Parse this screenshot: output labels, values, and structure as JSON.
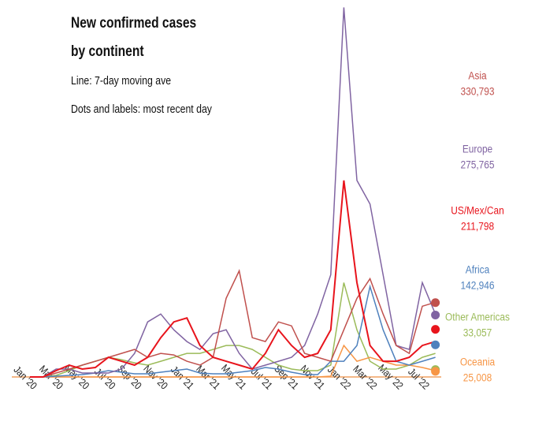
{
  "chart_data": {
    "type": "line",
    "title_lines": [
      "New confirmed cases",
      "by continent"
    ],
    "subtitle_lines": [
      "Line: 7-day moving ave",
      "Dots and labels: most recent day"
    ],
    "categories": [
      "Jan '20",
      null,
      "Mar '20",
      null,
      "May '20",
      null,
      "Jul '20",
      null,
      "Sep '20",
      null,
      "Nov '20",
      null,
      "Jan '21",
      null,
      "Mar '21",
      null,
      "May '21",
      null,
      "Jul '21",
      null,
      "Sep '21",
      null,
      "Nov '21",
      null,
      "Jan '22",
      null,
      "Mar '22",
      null,
      "May '22",
      null,
      "Jul '22",
      null
    ],
    "ylim": [
      0,
      1650000
    ],
    "series": [
      {
        "name": "Asia",
        "color": "#c0504d",
        "latest_value": 330793,
        "latest_label": "330,793",
        "values": [
          0,
          0,
          17500,
          35000,
          52500,
          70000,
          87500,
          105000,
          122500,
          87500,
          105000,
          98000,
          70000,
          52500,
          87500,
          350000,
          472500,
          175000,
          157500,
          245000,
          227500,
          105000,
          87500,
          70000,
          210000,
          350000,
          437500,
          280000,
          140000,
          105000,
          315000,
          332500
        ]
      },
      {
        "name": "Europe",
        "color": "#8064a2",
        "latest_value": 275765,
        "latest_label": "275,765",
        "values": [
          0,
          0,
          35000,
          35000,
          17500,
          17500,
          17500,
          35000,
          105000,
          245000,
          280000,
          210000,
          157500,
          122500,
          192500,
          210000,
          105000,
          35000,
          52500,
          70000,
          87500,
          140000,
          280000,
          455000,
          1645000,
          875000,
          770000,
          455000,
          140000,
          122500,
          420000,
          280000
        ]
      },
      {
        "name": "US/Mex/Can",
        "color": "#e8141c",
        "latest_value": 211798,
        "latest_label": "211,798",
        "values": [
          0,
          0,
          28000,
          52500,
          35000,
          42000,
          87500,
          70000,
          52500,
          87500,
          175000,
          245000,
          262500,
          140000,
          87500,
          70000,
          52500,
          35000,
          105000,
          210000,
          140000,
          87500,
          105000,
          210000,
          875000,
          420000,
          140000,
          70000,
          70000,
          87500,
          140000,
          157500
        ]
      },
      {
        "name": "Africa",
        "color": "#4f81bd",
        "latest_value": 142946,
        "latest_label": "142,946",
        "values": [
          0,
          0,
          3500,
          7000,
          10500,
          17500,
          28000,
          21000,
          14000,
          14000,
          21000,
          28000,
          35000,
          17500,
          14000,
          14000,
          21000,
          28000,
          42000,
          35000,
          21000,
          10500,
          10500,
          70000,
          70000,
          140000,
          402500,
          210000,
          70000,
          52500,
          70000,
          87500
        ]
      },
      {
        "name": "Other Americas",
        "color": "#9bbb59",
        "latest_value": 33057,
        "latest_label": "33,057",
        "values": [
          0,
          0,
          7000,
          28000,
          52500,
          70000,
          87500,
          77000,
          63000,
          52500,
          70000,
          87500,
          105000,
          105000,
          122500,
          140000,
          140000,
          122500,
          87500,
          52500,
          35000,
          28000,
          28000,
          52500,
          420000,
          210000,
          70000,
          35000,
          35000,
          52500,
          87500,
          105000
        ]
      },
      {
        "name": "Oceania",
        "color": "#f79646",
        "latest_value": 25008,
        "latest_label": "25,008",
        "values": [
          0,
          0,
          0,
          0,
          0,
          0,
          0,
          0,
          0,
          0,
          0,
          0,
          0,
          0,
          0,
          0,
          0,
          0,
          0,
          0,
          0,
          0,
          0,
          3500,
          140000,
          70000,
          87500,
          70000,
          52500,
          52500,
          42000,
          28000
        ]
      }
    ]
  }
}
